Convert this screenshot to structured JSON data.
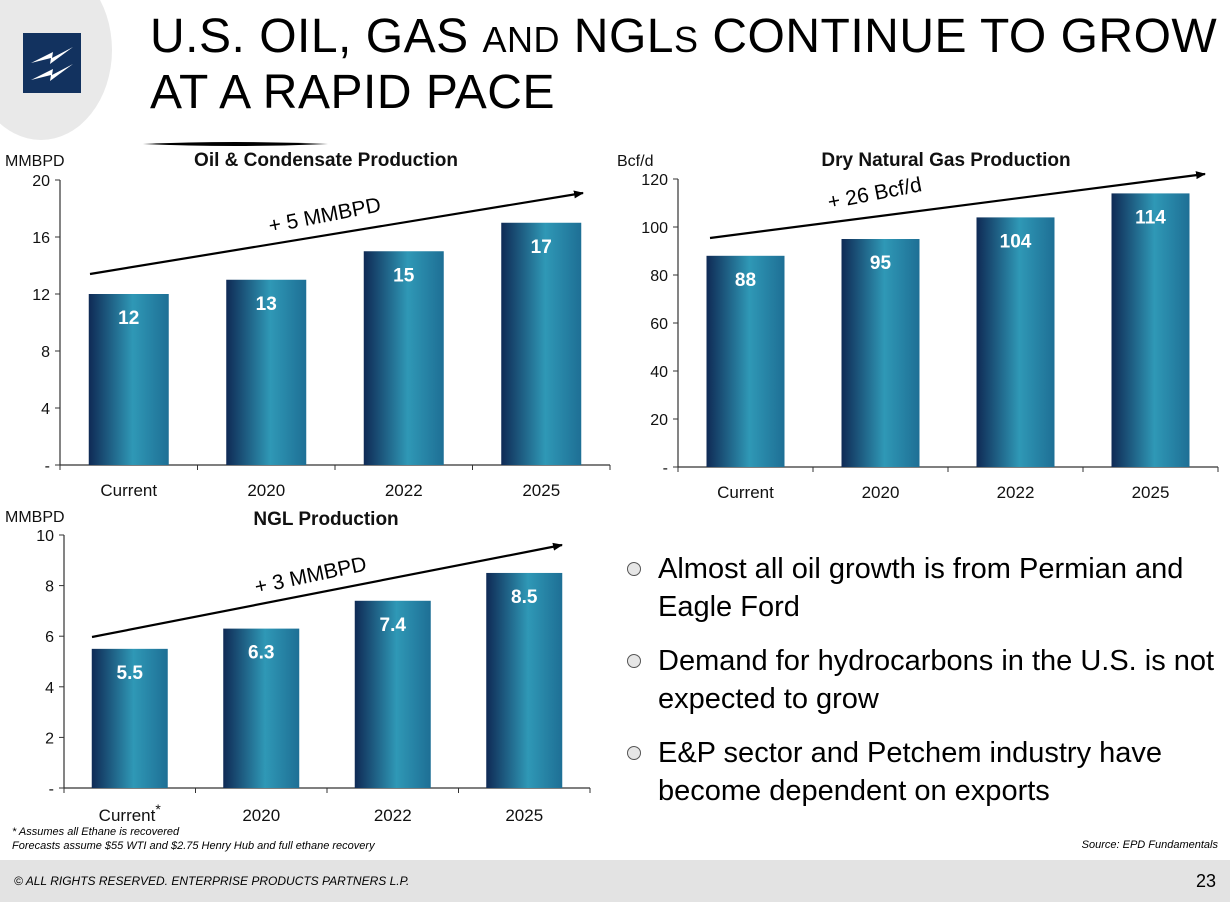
{
  "title": {
    "line1_a": "U.S. OIL, GAS ",
    "line1_b": "AND",
    "line1_c": " NGL",
    "line1_d": "S",
    "line1_e": " CONTINUE TO GROW",
    "line2": "AT A RAPID PACE"
  },
  "logo": {
    "icon": "lightning-bolt-icon",
    "colors": {
      "box": "#12325f",
      "bolt": "#ffffff"
    }
  },
  "colors": {
    "bar_dark": "#0f2a55",
    "bar_light": "#2f98b6",
    "axis": "#333333"
  },
  "chart_data": [
    {
      "type": "bar",
      "title": "Oil & Condensate Production",
      "ylabel": "MMBPD",
      "categories": [
        "Current",
        "2020",
        "2022",
        "2025"
      ],
      "values": [
        12,
        13,
        15,
        17
      ],
      "data_labels": [
        "12",
        "13",
        "15",
        "17"
      ],
      "ylim": [
        0,
        20
      ],
      "yticks": [
        0,
        4,
        8,
        12,
        16,
        20
      ],
      "ytick_labels": [
        "-",
        "4",
        "8",
        "12",
        "16",
        "20"
      ],
      "annotation": "+ 5 MMBPD",
      "grid": false
    },
    {
      "type": "bar",
      "title": "Dry Natural Gas Production",
      "ylabel": "Bcf/d",
      "categories": [
        "Current",
        "2020",
        "2022",
        "2025"
      ],
      "values": [
        88,
        95,
        104,
        114
      ],
      "data_labels": [
        "88",
        "95",
        "104",
        "114"
      ],
      "ylim": [
        0,
        120
      ],
      "yticks": [
        0,
        20,
        40,
        60,
        80,
        100,
        120
      ],
      "ytick_labels": [
        "-",
        "20",
        "40",
        "60",
        "80",
        "100",
        "120"
      ],
      "annotation": "+ 26 Bcf/d",
      "grid": false
    },
    {
      "type": "bar",
      "title": "NGL Production",
      "ylabel": "MMBPD",
      "categories": [
        "Current*",
        "2020",
        "2022",
        "2025"
      ],
      "values": [
        5.5,
        6.3,
        7.4,
        8.5
      ],
      "data_labels": [
        "5.5",
        "6.3",
        "7.4",
        "8.5"
      ],
      "ylim": [
        0,
        10
      ],
      "yticks": [
        0,
        2,
        4,
        6,
        8,
        10
      ],
      "ytick_labels": [
        "-",
        "2",
        "4",
        "6",
        "8",
        "10"
      ],
      "annotation": "+ 3 MMBPD",
      "grid": false
    }
  ],
  "bullets": [
    "Almost all oil growth is from Permian and Eagle Ford",
    "Demand for hydrocarbons in the U.S. is not expected to grow",
    "E&P sector and Petchem industry have become dependent on exports"
  ],
  "footnotes": {
    "line1": "* Assumes all Ethane is recovered",
    "line2": "Forecasts assume $55 WTI and $2.75 Henry Hub and full ethane recovery"
  },
  "source": "Source:  EPD Fundamentals",
  "footer": {
    "copyright": "© ALL RIGHTS RESERVED. ENTERPRISE PRODUCTS PARTNERS L.P.",
    "page_number": "23"
  }
}
